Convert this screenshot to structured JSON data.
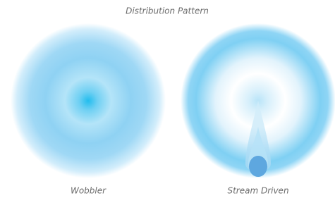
{
  "header": {
    "title": "Distribution Pattern"
  },
  "patterns": [
    {
      "label": "Wobbler"
    },
    {
      "label": "Stream Driven"
    }
  ]
}
